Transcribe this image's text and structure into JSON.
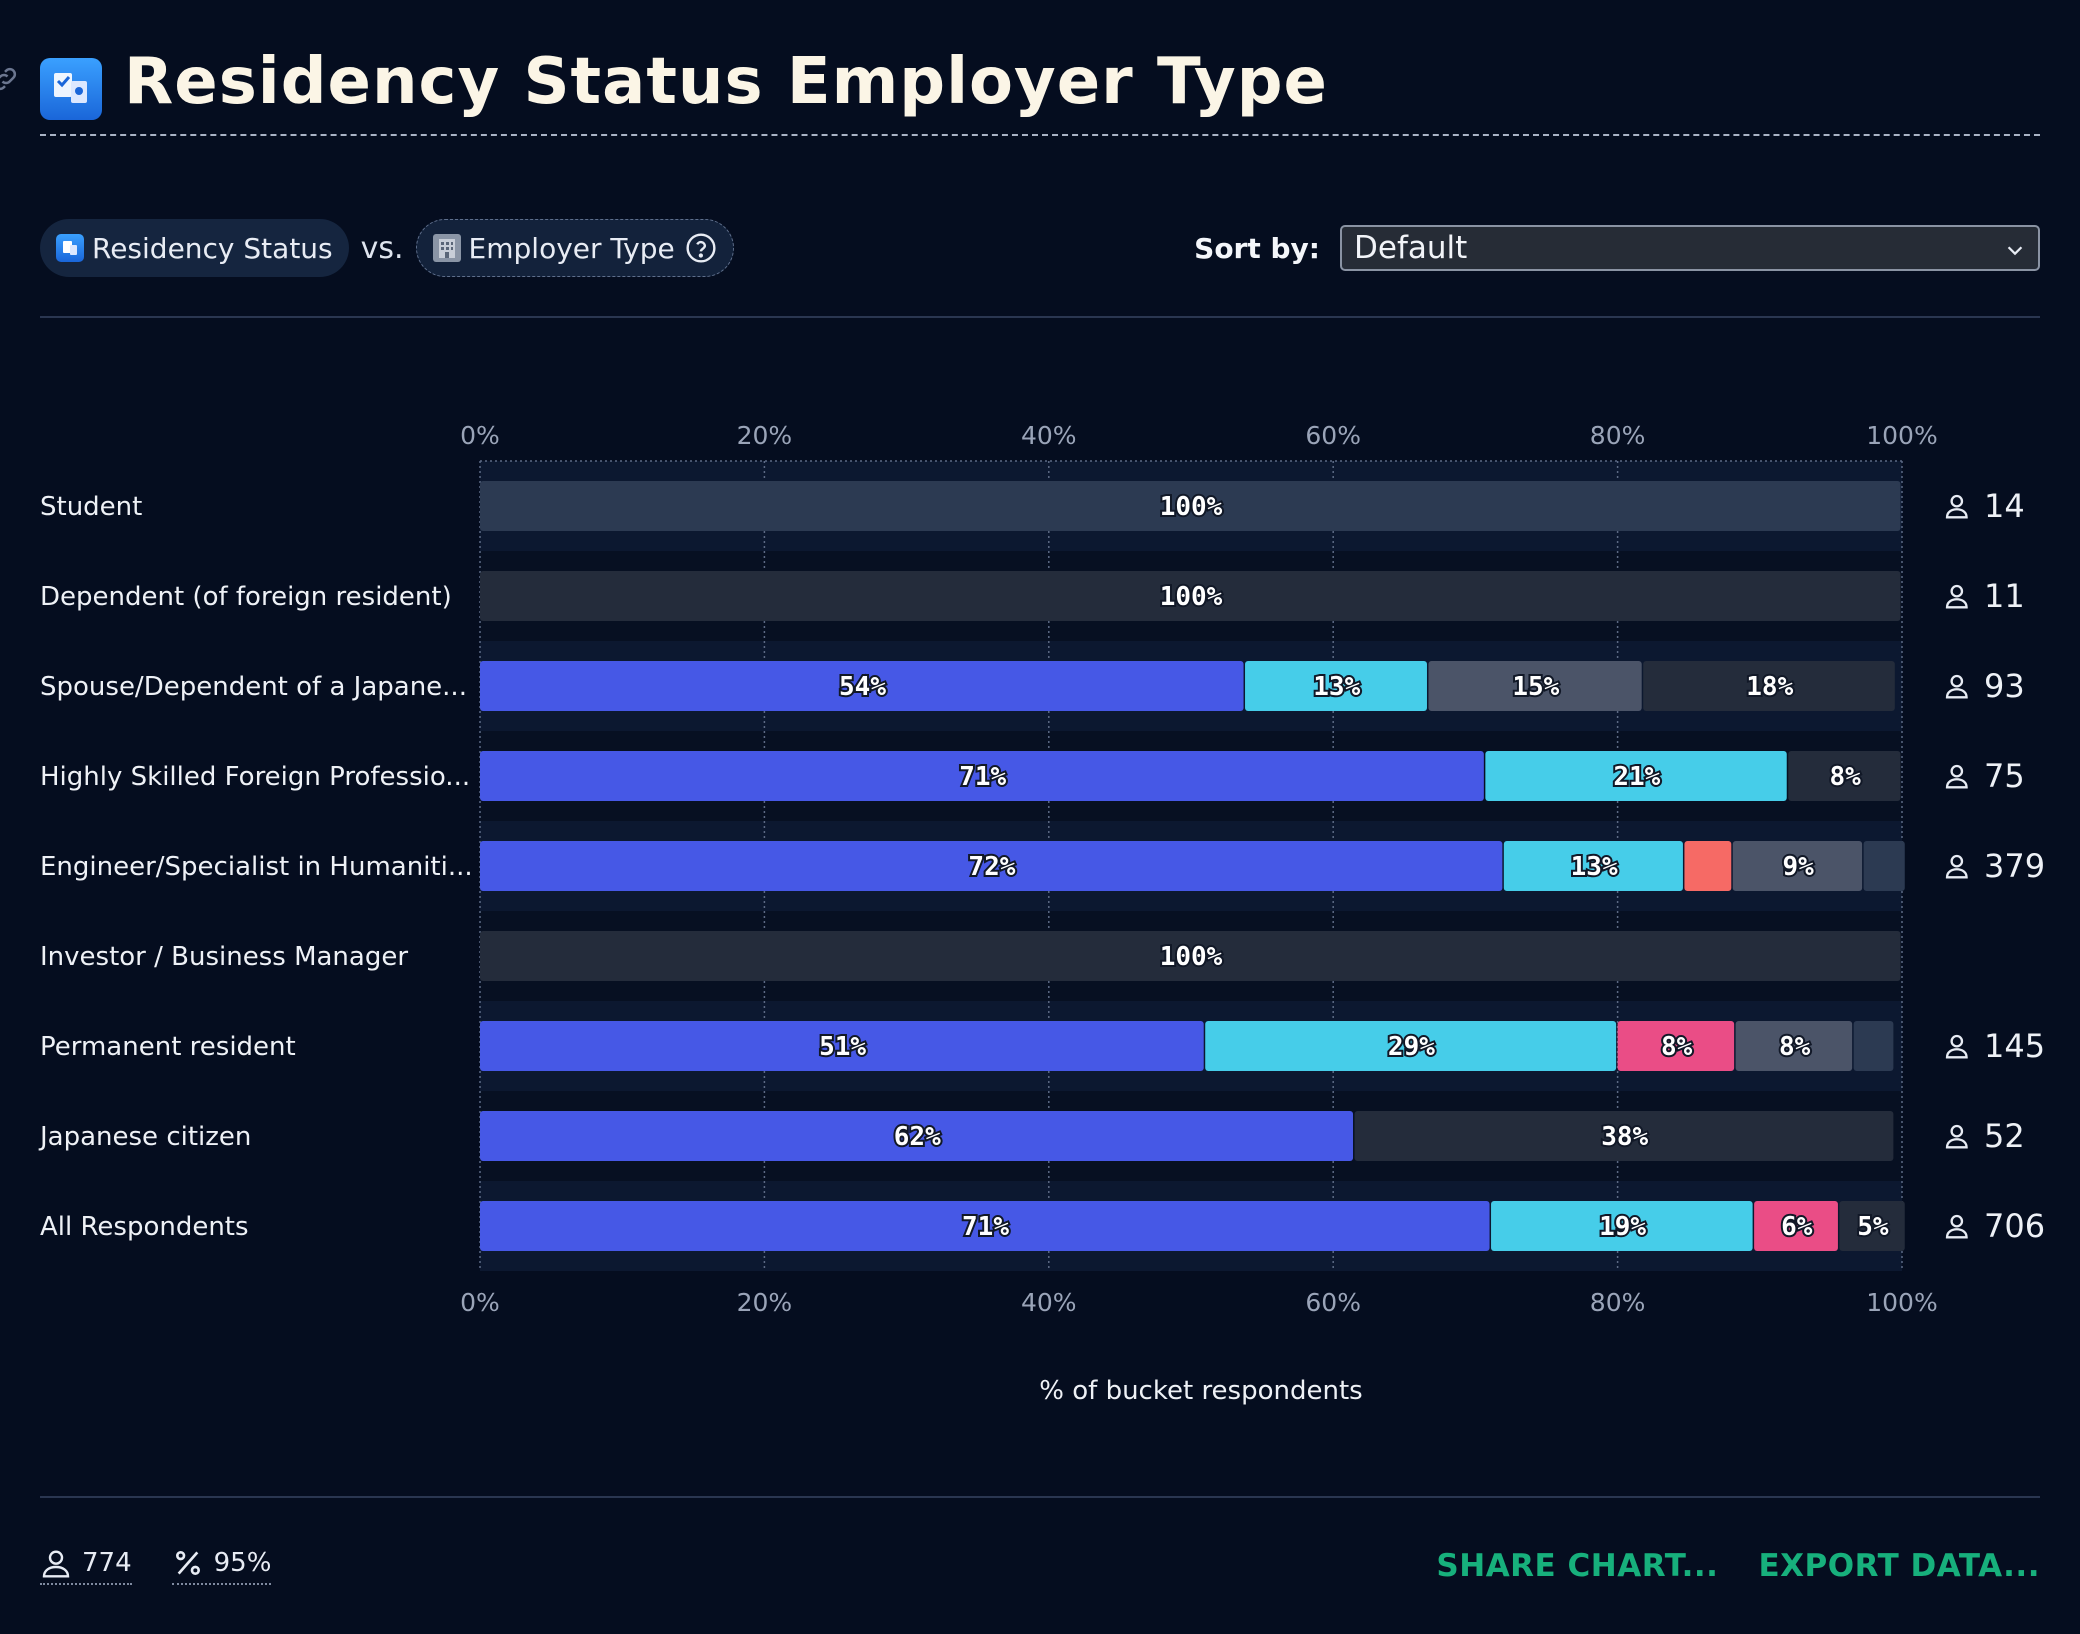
{
  "title": "Residency Status Employer Type",
  "controls": {
    "primary_label": "Residency Status",
    "vs_label": "vs.",
    "secondary_label": "Employer Type",
    "sort_label": "Sort by:",
    "sort_value": "Default"
  },
  "footer": {
    "respondents": "774",
    "completion": "95%",
    "share_label": "SHARE CHART...",
    "export_label": "EXPORT DATA..."
  },
  "colors": {
    "background": "#050d1f",
    "blue": "#4658e6",
    "cyan": "#46cde9",
    "pink": "#ea4d86",
    "coral": "#f66a65",
    "gray": "#4b5468",
    "slate": "#2c3a52",
    "dark": "#242c3b",
    "action": "#17b07c"
  },
  "chart_data": {
    "type": "bar",
    "orientation": "horizontal",
    "stacked": true,
    "x_ticks": [
      "0%",
      "20%",
      "40%",
      "60%",
      "80%",
      "100%"
    ],
    "xlim": [
      0,
      100
    ],
    "xlabel": "% of bucket respondents",
    "grid": true,
    "rows": [
      {
        "label": "Student",
        "count": "14",
        "segments": [
          {
            "value": 100,
            "label": "100%",
            "color": "slate"
          }
        ]
      },
      {
        "label": "Dependent (of foreign resident)",
        "count": "11",
        "segments": [
          {
            "value": 100,
            "label": "100%",
            "color": "dark"
          }
        ]
      },
      {
        "label": "Spouse/Dependent of a Japane...",
        "count": "93",
        "segments": [
          {
            "value": 53.8,
            "label": "54%",
            "color": "blue"
          },
          {
            "value": 12.9,
            "label": "13%",
            "color": "cyan"
          },
          {
            "value": 15.1,
            "label": "15%",
            "color": "gray"
          },
          {
            "value": 17.8,
            "label": "18%",
            "color": "dark"
          }
        ]
      },
      {
        "label": "Highly Skilled Foreign Professio...",
        "count": "75",
        "segments": [
          {
            "value": 70.7,
            "label": "71%",
            "color": "blue"
          },
          {
            "value": 21.3,
            "label": "21%",
            "color": "cyan"
          },
          {
            "value": 8.0,
            "label": "8%",
            "color": "dark"
          }
        ]
      },
      {
        "label": "Engineer/Specialist in Humaniti...",
        "count": "379",
        "segments": [
          {
            "value": 72.0,
            "label": "72%",
            "color": "blue"
          },
          {
            "value": 12.7,
            "label": "13%",
            "color": "cyan"
          },
          {
            "value": 3.4,
            "label": "",
            "color": "coral"
          },
          {
            "value": 9.2,
            "label": "9%",
            "color": "gray"
          },
          {
            "value": 3.0,
            "label": "",
            "color": "slate"
          }
        ]
      },
      {
        "label": "Investor / Business Manager",
        "count": "",
        "segments": [
          {
            "value": 100,
            "label": "100%",
            "color": "dark"
          }
        ]
      },
      {
        "label": "Permanent resident",
        "count": "145",
        "segments": [
          {
            "value": 51.0,
            "label": "51%",
            "color": "blue"
          },
          {
            "value": 29.0,
            "label": "29%",
            "color": "cyan"
          },
          {
            "value": 8.3,
            "label": "8%",
            "color": "pink"
          },
          {
            "value": 8.3,
            "label": "8%",
            "color": "gray"
          },
          {
            "value": 2.9,
            "label": "",
            "color": "slate"
          }
        ]
      },
      {
        "label": "Japanese citizen",
        "count": "52",
        "segments": [
          {
            "value": 61.5,
            "label": "62%",
            "color": "blue"
          },
          {
            "value": 38.0,
            "label": "38%",
            "color": "dark"
          }
        ]
      },
      {
        "label": "All Respondents",
        "count": "706",
        "segments": [
          {
            "value": 71.1,
            "label": "71%",
            "color": "blue"
          },
          {
            "value": 18.5,
            "label": "19%",
            "color": "cyan"
          },
          {
            "value": 6.0,
            "label": "6%",
            "color": "pink"
          },
          {
            "value": 4.7,
            "label": "5%",
            "color": "dark"
          }
        ]
      }
    ]
  }
}
